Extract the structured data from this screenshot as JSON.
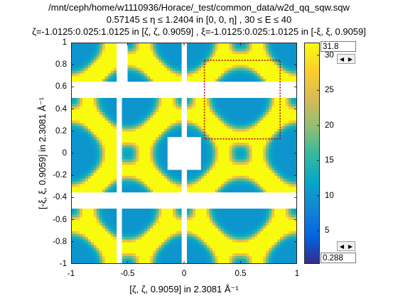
{
  "title": {
    "line1": "/mnt/ceph/home/w1110936/Horace/_test/common_data/w2d_qq_sqw.sqw",
    "line2": "0.57145 ≤ η ≤ 1.2404 in [0, 0, η] , 30 ≤ E ≤ 40",
    "line3": "ζ=-1.0125:0.025:1.0125 in [ζ, ζ, 0.9059] , ξ=-1.0125:0.025:1.0125 in [-ξ, ξ, 0.9059]"
  },
  "chart_data": {
    "type": "heatmap",
    "xlabel": "[ζ, ζ, 0.9059] in 2.3081 Å⁻¹",
    "ylabel": "[-ξ, ξ, 0.9059] in 2.3081 Å⁻¹",
    "xlim": [
      -1,
      1
    ],
    "ylim": [
      -1,
      1
    ],
    "xticks": [
      "-1",
      "-0.5",
      "0",
      "0.5",
      "1"
    ],
    "yticks": [
      "1",
      "0.8",
      "0.6",
      "0.4",
      "0.2",
      "0",
      "-0.2",
      "-0.4",
      "-0.6",
      "-0.8",
      "-1"
    ],
    "colormap": "parula",
    "clim": [
      0.288,
      31.8
    ],
    "colorbar_ticks": [
      "30",
      "25",
      "20",
      "15",
      "10",
      "5"
    ],
    "colorbar_max": "31.8",
    "colorbar_min": "0.288",
    "selection_box": {
      "x": [
        0.18,
        0.85
      ],
      "y": [
        0.13,
        0.84
      ],
      "color": "#a00000"
    },
    "ring_centers": [
      [
        -1,
        1
      ],
      [
        0,
        1
      ],
      [
        1,
        1
      ],
      [
        -1,
        0
      ],
      [
        1,
        0
      ],
      [
        -1,
        -1
      ],
      [
        0,
        -1
      ],
      [
        1,
        -1
      ],
      [
        -0.5,
        0.5
      ],
      [
        0.5,
        0.5
      ],
      [
        -0.5,
        -0.5
      ],
      [
        0.5,
        -0.5
      ],
      [
        0,
        0
      ]
    ],
    "ring_radius": 0.35,
    "ring_peak": 31.8,
    "background_level": 10,
    "gaps": {
      "horizontal_bands_y": [
        [
          0.5,
          0.65
        ],
        [
          -0.5,
          -0.35
        ]
      ],
      "vertical_bands_x": [
        [
          -0.6,
          -0.55
        ],
        [
          -0.03,
          0.03
        ]
      ],
      "center_hole_x": [
        -0.15,
        0.15
      ],
      "center_hole_y": [
        -0.15,
        0.15
      ],
      "blank_regions": [
        {
          "x": [
            -0.6,
            -0.5
          ],
          "y": [
            0.65,
            1.0
          ]
        }
      ]
    }
  }
}
